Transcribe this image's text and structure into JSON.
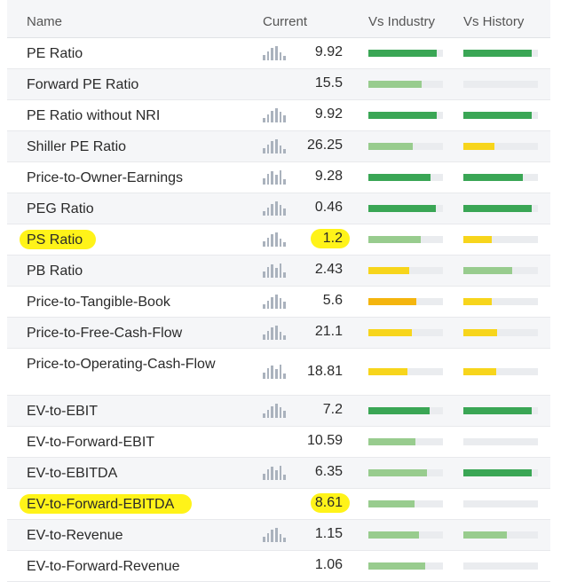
{
  "headers": {
    "name": "Name",
    "current": "Current",
    "vs_industry": "Vs Industry",
    "vs_history": "Vs History"
  },
  "colors": {
    "dark_green": "#3aa655",
    "light_green": "#98cc8e",
    "yellow": "#f7d51c",
    "orange": "#f4b50e",
    "highlight": "#fff200"
  },
  "rows": [
    {
      "name": "PE Ratio",
      "value": "9.92",
      "has_chart": true,
      "industry": {
        "level": 0.92,
        "color": "dark_green"
      },
      "history": {
        "level": 0.92,
        "color": "dark_green"
      }
    },
    {
      "name": "Forward PE Ratio",
      "value": "15.5",
      "has_chart": false,
      "industry": {
        "level": 0.72,
        "color": "light_green"
      },
      "history": {
        "level": 0.0,
        "color": "dark_green"
      }
    },
    {
      "name": "PE Ratio without NRI",
      "value": "9.92",
      "has_chart": true,
      "industry": {
        "level": 0.92,
        "color": "dark_green"
      },
      "history": {
        "level": 0.92,
        "color": "dark_green"
      }
    },
    {
      "name": "Shiller PE Ratio",
      "value": "26.25",
      "has_chart": true,
      "industry": {
        "level": 0.6,
        "color": "light_green"
      },
      "history": {
        "level": 0.42,
        "color": "yellow"
      }
    },
    {
      "name": "Price-to-Owner-Earnings",
      "value": "9.28",
      "has_chart": true,
      "industry": {
        "level": 0.83,
        "color": "dark_green"
      },
      "history": {
        "level": 0.8,
        "color": "dark_green"
      }
    },
    {
      "name": "PEG Ratio",
      "value": "0.46",
      "has_chart": true,
      "industry": {
        "level": 0.9,
        "color": "dark_green"
      },
      "history": {
        "level": 0.92,
        "color": "dark_green"
      }
    },
    {
      "name": "PS Ratio",
      "value": "1.2",
      "has_chart": true,
      "highlight": true,
      "industry": {
        "level": 0.7,
        "color": "light_green"
      },
      "history": {
        "level": 0.38,
        "color": "yellow"
      }
    },
    {
      "name": "PB Ratio",
      "value": "2.43",
      "has_chart": true,
      "industry": {
        "level": 0.55,
        "color": "yellow"
      },
      "history": {
        "level": 0.65,
        "color": "light_green"
      }
    },
    {
      "name": "Price-to-Tangible-Book",
      "value": "5.6",
      "has_chart": true,
      "industry": {
        "level": 0.64,
        "color": "orange"
      },
      "history": {
        "level": 0.38,
        "color": "yellow"
      }
    },
    {
      "name": "Price-to-Free-Cash-Flow",
      "value": "21.1",
      "has_chart": true,
      "industry": {
        "level": 0.58,
        "color": "yellow"
      },
      "history": {
        "level": 0.45,
        "color": "yellow"
      }
    },
    {
      "name": "Price-to-Operating-Cash-Flow",
      "value": "18.81",
      "has_chart": true,
      "tall": true,
      "industry": {
        "level": 0.52,
        "color": "yellow"
      },
      "history": {
        "level": 0.44,
        "color": "yellow"
      }
    },
    {
      "name": "EV-to-EBIT",
      "value": "7.2",
      "has_chart": true,
      "industry": {
        "level": 0.82,
        "color": "dark_green"
      },
      "history": {
        "level": 0.92,
        "color": "dark_green"
      }
    },
    {
      "name": "EV-to-Forward-EBIT",
      "value": "10.59",
      "has_chart": false,
      "industry": {
        "level": 0.63,
        "color": "light_green"
      },
      "history": {
        "level": 0.0,
        "color": "dark_green"
      }
    },
    {
      "name": "EV-to-EBITDA",
      "value": "6.35",
      "has_chart": true,
      "industry": {
        "level": 0.78,
        "color": "light_green"
      },
      "history": {
        "level": 0.92,
        "color": "dark_green"
      }
    },
    {
      "name": "EV-to-Forward-EBITDA",
      "value": "8.61",
      "has_chart": false,
      "highlight": true,
      "industry": {
        "level": 0.62,
        "color": "light_green"
      },
      "history": {
        "level": 0.0,
        "color": "dark_green"
      }
    },
    {
      "name": "EV-to-Revenue",
      "value": "1.15",
      "has_chart": true,
      "industry": {
        "level": 0.68,
        "color": "light_green"
      },
      "history": {
        "level": 0.58,
        "color": "light_green"
      }
    },
    {
      "name": "EV-to-Forward-Revenue",
      "value": "1.06",
      "has_chart": false,
      "industry": {
        "level": 0.76,
        "color": "light_green"
      },
      "history": {
        "level": 0.0,
        "color": "dark_green"
      }
    }
  ]
}
